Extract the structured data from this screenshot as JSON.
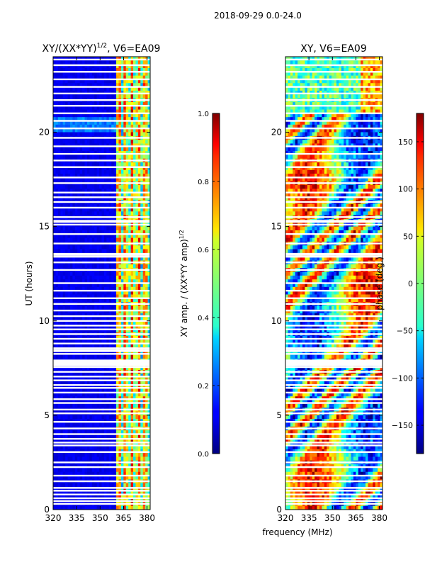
{
  "figure_title": "2018-09-29 0.0-24.0",
  "chart_data": [
    {
      "type": "heatmap",
      "title": "XY/(XX*YY)^{1/2}, V6=EA09",
      "title_main": "XY/(XX*YY)",
      "title_sup": "1/2",
      "title_tail": ", V6=EA09",
      "xlabel": "frequency (MHz)",
      "ylabel": "UT (hours)",
      "xlim": [
        320,
        382
      ],
      "ylim": [
        0,
        24
      ],
      "x_ticks": [
        320,
        335,
        350,
        365,
        380
      ],
      "y_ticks": [
        0,
        5,
        10,
        15,
        20
      ],
      "colorbar": {
        "label": "XY amp. / (XX*YY amp)^{1/2}",
        "label_main": "XY amp. / (XX*YY amp)",
        "label_sup": "1/2",
        "range": [
          0.0,
          1.0
        ],
        "ticks": [
          "0.0",
          "0.2",
          "0.4",
          "0.6",
          "0.8",
          "1.0"
        ],
        "tick_values": [
          0,
          0.2,
          0.4,
          0.6,
          0.8,
          1.0
        ],
        "colormap": "jet"
      },
      "data_gaps_hours": [
        0.3,
        0.45,
        0.6,
        0.8,
        1.0,
        1.15,
        1.5,
        1.8,
        2.25,
        2.5,
        3.05,
        3.4,
        3.55,
        3.75,
        4.0,
        4.3,
        4.65,
        5.1,
        5.3,
        5.65,
        5.85,
        6.2,
        6.45,
        6.6,
        6.85,
        7.05,
        7.3,
        7.55,
        7.8,
        8.25,
        8.55,
        8.8,
        9.05,
        9.3,
        9.55,
        9.75,
        10.0,
        10.25,
        10.55,
        10.9,
        11.2,
        11.6,
        12.0,
        12.7,
        13.1,
        13.4,
        14.1,
        14.6,
        15.1,
        15.5,
        16.0,
        16.3,
        16.55,
        16.8,
        17.3,
        17.6,
        18.15,
        18.5,
        18.85,
        19.25,
        19.7,
        20.2,
        20.6,
        21.0,
        21.4,
        21.7,
        22.05,
        22.4,
        22.8,
        23.2,
        23.55,
        23.85
      ],
      "wide_gaps_hours": [
        [
          7.6,
          7.95
        ],
        [
          8.35,
          8.5
        ],
        [
          13.45,
          13.6
        ],
        [
          15.2,
          15.35
        ]
      ]
    },
    {
      "type": "heatmap",
      "title": "XY, V6=EA09",
      "xlabel": "frequency (MHz)",
      "ylabel": "",
      "xlim": [
        320,
        382
      ],
      "ylim": [
        0,
        24
      ],
      "x_ticks": [
        320,
        335,
        350,
        365,
        380
      ],
      "y_ticks": [
        0,
        5,
        10,
        15,
        20
      ],
      "colorbar": {
        "label": "phase (deg.)",
        "range": [
          -180,
          180
        ],
        "ticks": [
          "−150",
          "−100",
          "−50",
          "0",
          "50",
          "100",
          "150"
        ],
        "tick_values": [
          -150,
          -100,
          -50,
          0,
          50,
          100,
          150
        ],
        "colormap": "jet"
      },
      "data_gaps_hours": [
        0.3,
        0.45,
        0.6,
        0.8,
        1.0,
        1.15,
        1.5,
        1.8,
        2.25,
        2.5,
        3.05,
        3.4,
        3.55,
        3.75,
        4.0,
        4.3,
        4.65,
        5.1,
        5.3,
        5.65,
        5.85,
        6.2,
        6.45,
        6.6,
        6.85,
        7.05,
        7.3,
        7.55,
        7.8,
        8.25,
        8.55,
        8.8,
        9.05,
        9.3,
        9.55,
        9.75,
        10.0,
        10.25,
        10.55,
        10.9,
        11.2,
        11.6,
        12.0,
        12.7,
        13.1,
        13.4,
        14.1,
        14.6,
        15.1,
        15.5,
        16.0,
        16.3,
        16.55,
        16.8,
        17.3,
        17.6,
        18.15,
        18.5,
        18.85,
        19.25,
        19.7,
        20.2,
        20.6,
        21.0,
        21.4,
        21.7,
        22.05,
        22.4,
        22.8,
        23.2,
        23.55,
        23.85
      ],
      "wide_gaps_hours": [
        [
          7.6,
          7.95
        ],
        [
          8.35,
          8.5
        ],
        [
          13.45,
          13.6
        ],
        [
          15.2,
          15.35
        ]
      ]
    }
  ]
}
